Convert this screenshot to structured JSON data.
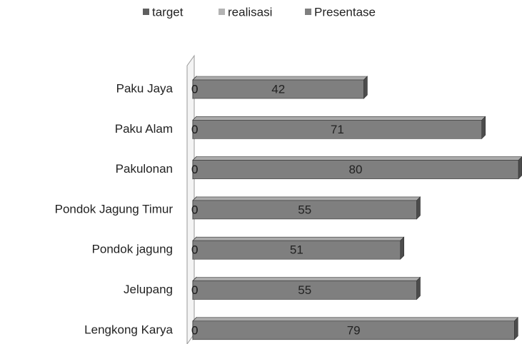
{
  "chart_data": {
    "type": "bar3d-horizontal",
    "categories": [
      "Paku Jaya",
      "Paku Alam",
      "Pakulonan",
      "Pondok Jagung Timur",
      "Pondok jagung",
      "Jelupang",
      "Lengkong Karya"
    ],
    "series": [
      {
        "name": "target",
        "color": "#5f5f5f",
        "values": [
          0,
          0,
          0,
          0,
          0,
          0,
          0
        ]
      },
      {
        "name": "realisasi",
        "color": "#b3b3b3",
        "values": [
          0,
          0,
          0,
          0,
          0,
          0,
          0
        ]
      },
      {
        "name": "Presentase",
        "color": "#7f7f7f",
        "values": [
          42,
          71,
          80,
          55,
          51,
          55,
          79
        ]
      }
    ],
    "legend": "top"
  }
}
